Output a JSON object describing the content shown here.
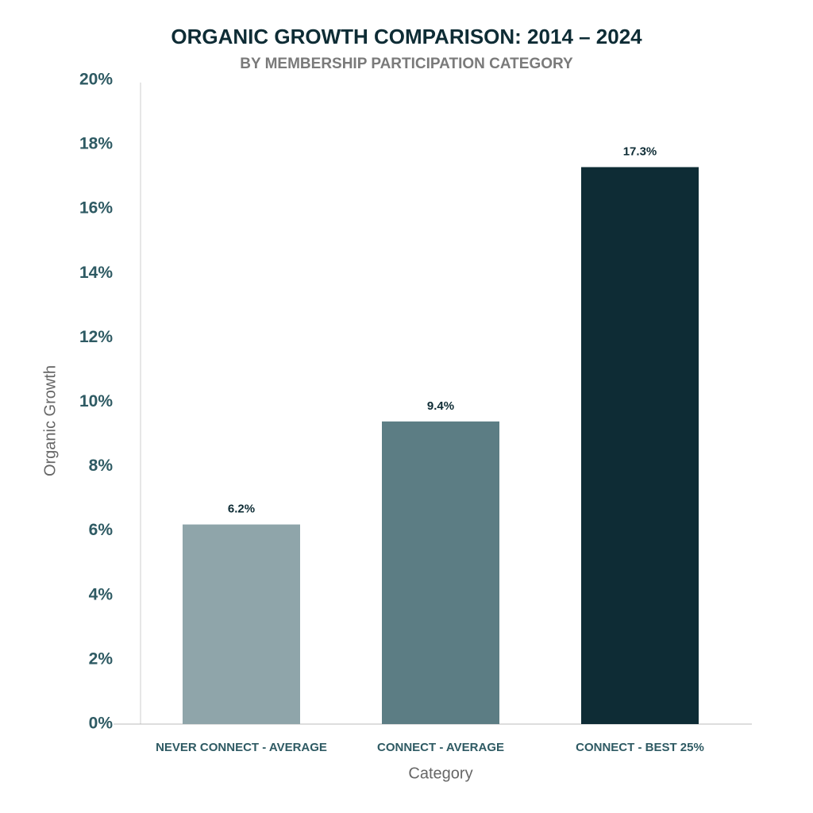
{
  "chart_data": {
    "type": "bar",
    "title": "ORGANIC GROWTH COMPARISON: 2014 – 2024",
    "subtitle": "BY MEMBERSHIP PARTICIPATION CATEGORY",
    "x_label": "Category",
    "y_label": "Organic Growth",
    "categories": [
      "NEVER CONNECT - AVERAGE",
      "CONNECT - AVERAGE",
      "CONNECT - BEST 25%"
    ],
    "values": [
      6.2,
      9.4,
      17.3
    ],
    "value_labels": [
      "6.2%",
      "9.4%",
      "17.3%"
    ],
    "colors": [
      "#8fa5aa",
      "#5c7d84",
      "#0e2c35"
    ],
    "ylim": [
      0,
      20
    ],
    "yticks": [
      {
        "value": 0,
        "label": "0%"
      },
      {
        "value": 2,
        "label": "2%"
      },
      {
        "value": 4,
        "label": "4%"
      },
      {
        "value": 6,
        "label": "6%"
      },
      {
        "value": 8,
        "label": "8%"
      },
      {
        "value": 10,
        "label": "10%"
      },
      {
        "value": 12,
        "label": "12%"
      },
      {
        "value": 14,
        "label": "14%"
      },
      {
        "value": 16,
        "label": "16%"
      },
      {
        "value": 18,
        "label": "18%"
      },
      {
        "value": 20,
        "label": "20%"
      }
    ],
    "grid": false
  }
}
